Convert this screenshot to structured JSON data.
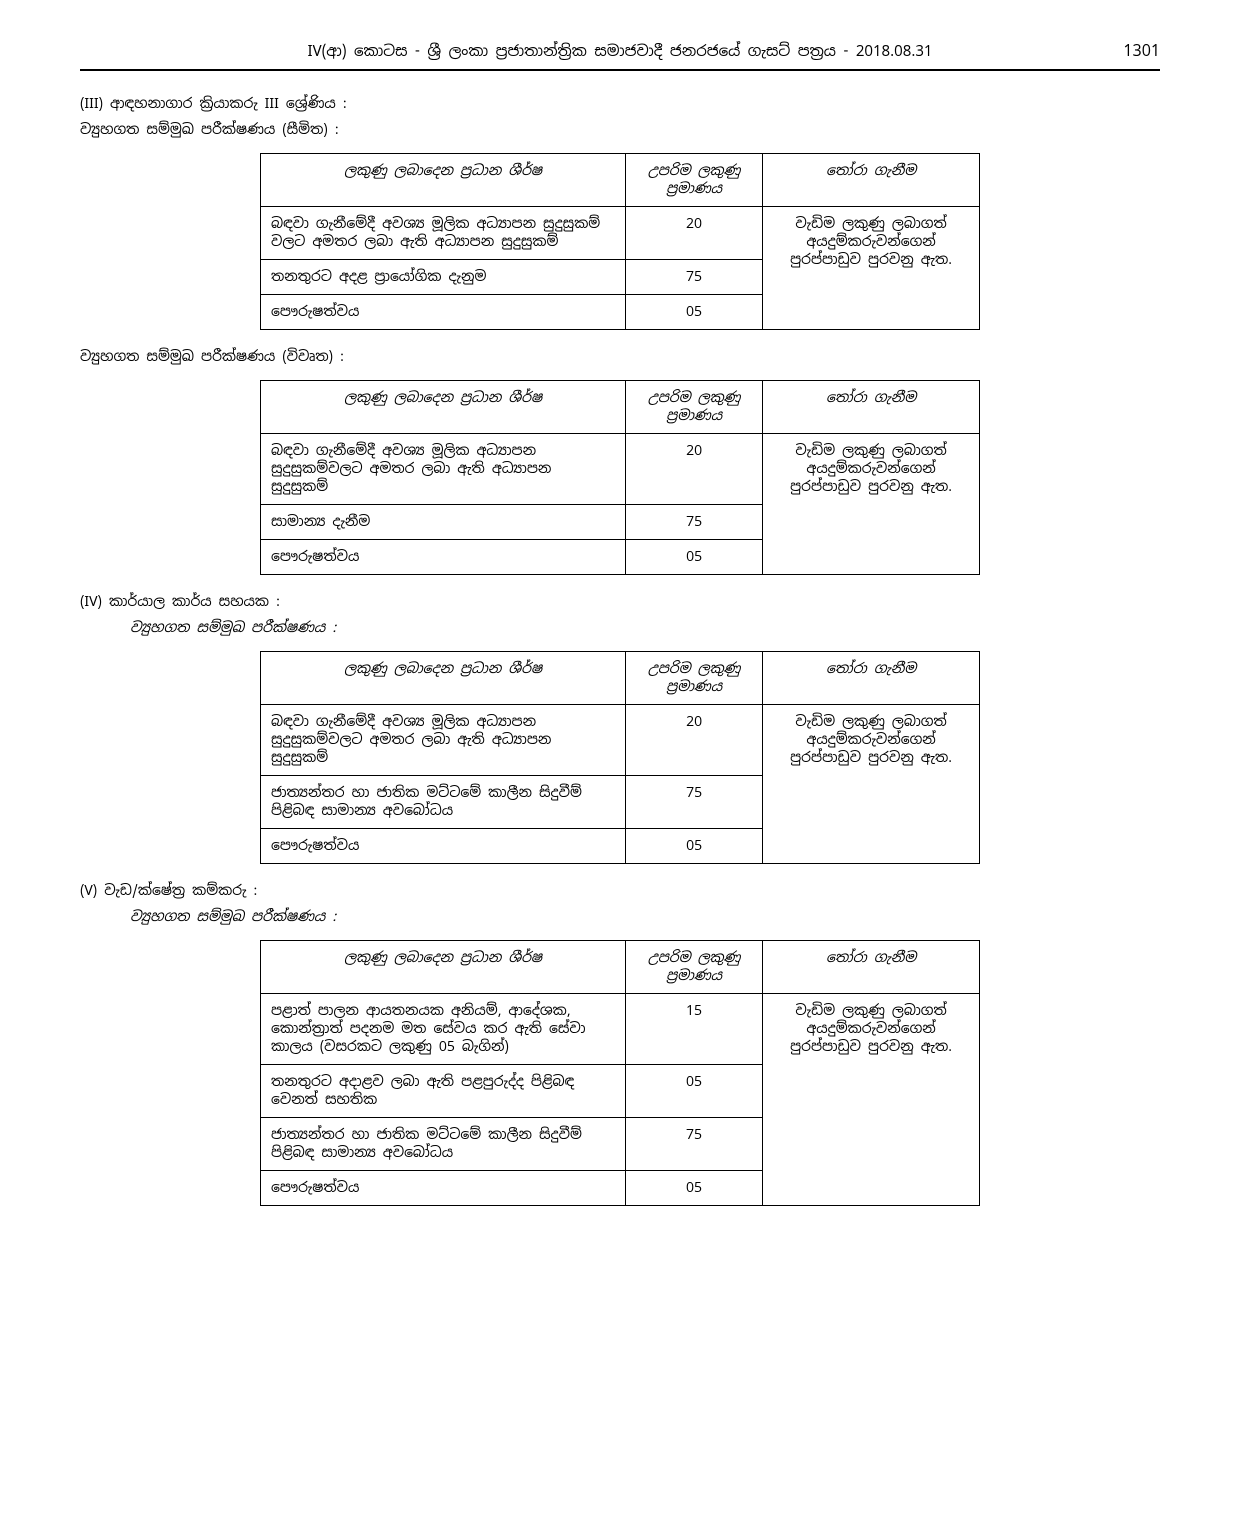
{
  "header": {
    "title": "IV(ආ) කොටස - ශ්‍රී ලංකා ප්‍රජාතාන්ත්‍රික සමාජවාදී ජනරජයේ ගැසට් පත්‍රය - 2018.08.31",
    "page_number": "1301"
  },
  "sections": [
    {
      "id": "III",
      "heading": "(III) ආඳහනාගාර ක්‍රියාකරු III ශ්‍රේණිය :",
      "subsections": [
        {
          "sub_heading": "ව්‍යුහගත සම්මුඛ පරීක්ෂණය (සීමිත) :",
          "table": {
            "headers": [
              "ලකුණු ලබාදෙන ප්‍රධාන ශීර්ෂ",
              "උපරිම ලකුණු ප්‍රමාණය",
              "තෝරා ගැනීම"
            ],
            "rows": [
              {
                "main": "බඳවා ගැනීමේදී අවශ්‍ය මූලික අධ්‍යාපන සුදුසුකම් වලට අමතර ලබා ඇති අධ්‍යාපන සුදුසුකම්",
                "marks": "20",
                "select": "වැඩිම ලකුණු ලබාගත් අයදුම්කරුවන්ගෙන් පුරප්පාඩුව පුරවනු ඇත.",
                "rowspan": 3
              },
              {
                "main": "තනතුරට අදළ ප්‍රායෝගික දැනුම",
                "marks": "75"
              },
              {
                "main": "පෞරුෂත්වය",
                "marks": "05"
              }
            ]
          }
        },
        {
          "sub_heading": "ව්‍යුහගත සම්මුඛ පරීක්ෂණය (විවෘත) :",
          "table": {
            "headers": [
              "ලකුණු ලබාදෙන ප්‍රධාන ශීර්ෂ",
              "උපරිම ලකුණු ප්‍රමාණය",
              "තෝරා ගැනීම"
            ],
            "rows": [
              {
                "main": "බඳවා ගැනීමේදී අවශ්‍ය මූලික අධ්‍යාපන සුදුසුකම්වලට අමතර ලබා ඇති අධ්‍යාපන සුදුසුකම්",
                "marks": "20",
                "select": "වැඩිම ලකුණු ලබාගත් අයදුම්කරුවන්ගෙන් පුරප්පාඩුව පුරවනු ඇත.",
                "rowspan": 3
              },
              {
                "main": "සාමාන්‍ය දැනීම",
                "marks": "75"
              },
              {
                "main": "පෞරුෂත්වය",
                "marks": "05"
              }
            ]
          }
        }
      ]
    },
    {
      "id": "IV",
      "heading": "(IV) කාර්යාල කාර්ය සහයක :",
      "subsections": [
        {
          "sub_heading": "ව්‍යුහගත සම්මුඛ පරීක්ෂණය :",
          "sub_italic": true,
          "sub_indent": true,
          "table": {
            "headers": [
              "ලකුණු ලබාදෙන ප්‍රධාන ශීර්ෂ",
              "උපරිම ලකුණු ප්‍රමාණය",
              "තෝරා ගැනීම"
            ],
            "rows": [
              {
                "main": "බඳවා ගැනීමේදී අවශ්‍ය මූලික අධ්‍යාපන සුදුසුකම්වලට අමතර ලබා ඇති අධ්‍යාපන සුදුසුකම්",
                "marks": "20",
                "select": "වැඩිම ලකුණු ලබාගත් අයදුම්කරුවන්ගෙන් පුරප්පාඩුව පුරවනු ඇත.",
                "rowspan": 3
              },
              {
                "main": "ජාත්‍යන්තර හා ජාතික මට්ටමේ කාලීන සිදුවීම් පිළිබඳ සාමාන්‍ය අවබෝධය",
                "marks": "75"
              },
              {
                "main": "පෞරුෂත්වය",
                "marks": "05"
              }
            ]
          }
        }
      ]
    },
    {
      "id": "V",
      "heading": "(V) වැඩ/ක්ෂේත්‍ර කම්කරු :",
      "subsections": [
        {
          "sub_heading": "ව්‍යුහගත සම්මුඛ පරීක්ෂණය :",
          "sub_italic": true,
          "sub_indent": true,
          "table": {
            "headers": [
              "ලකුණු ලබාදෙන ප්‍රධාන ශීර්ෂ",
              "උපරිම ලකුණු ප්‍රමාණය",
              "තෝරා ගැනීම"
            ],
            "rows": [
              {
                "main": "පළාත් පාලන ආයතනයක අනියම්, ආදේශක, කොන්ත්‍රාත් පදනම මත සේවය කර ඇති සේවා කාලය (වසරකට ලකුණු 05 බැගින්)",
                "marks": "15",
                "select": "වැඩිම ලකුණු ලබාගත් අයදුම්කරුවන්ගෙන් පුරප්පාඩුව පුරවනු ඇත.",
                "rowspan": 4
              },
              {
                "main": "තනතුරට අදාළව ලබා ඇති පළපුරුද්ද පිළිබඳ වෙනත් සහතික",
                "marks": "05"
              },
              {
                "main": "ජාත්‍යන්තර හා ජාතික මට්ටමේ කාලීන සිදුවීම් පිළිබඳ සාමාන්‍ය අවබෝධය",
                "marks": "75"
              },
              {
                "main": "පෞරුෂත්වය",
                "marks": "05"
              }
            ]
          }
        }
      ]
    }
  ]
}
